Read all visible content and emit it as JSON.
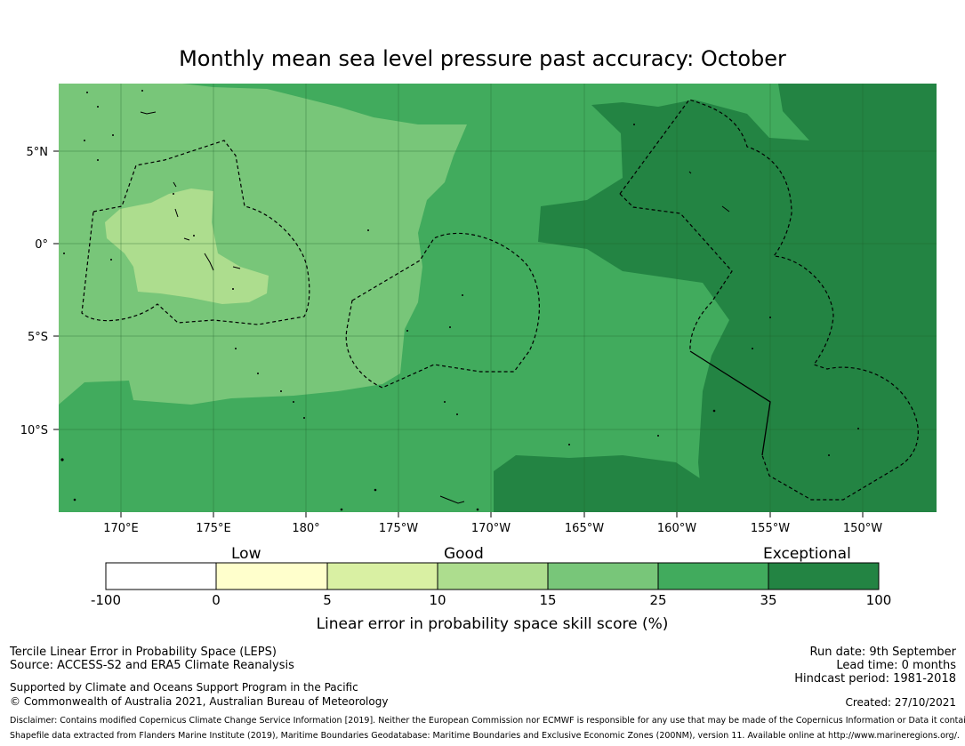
{
  "title": "Monthly mean sea level pressure past accuracy: October",
  "map": {
    "lat_ticks": [
      "5°N",
      "0°",
      "5°S",
      "10°S"
    ],
    "lon_ticks": [
      "170°E",
      "175°E",
      "180°",
      "175°W",
      "170°W",
      "165°W",
      "160°W",
      "155°W",
      "150°W"
    ]
  },
  "colorbar": {
    "category_labels": [
      "Low",
      "Good",
      "Exceptional"
    ],
    "ticks": [
      "-100",
      "0",
      "5",
      "10",
      "15",
      "25",
      "35",
      "100"
    ],
    "colors": [
      "#ffffff",
      "#ffffcc",
      "#d9f0a3",
      "#addd8e",
      "#78c679",
      "#41ab5d",
      "#238443"
    ],
    "label": "Linear error in probability space skill score (%)"
  },
  "footer": {
    "method": "Tercile Linear Error in Probability Space (LEPS)",
    "source": "Source: ACCESS-S2 and ERA5 Climate Reanalysis",
    "support": "Supported by Climate and Oceans Support Program in the Pacific",
    "copyright": "© Commonwealth of Australia 2021, Australian Bureau of Meteorology",
    "run_date": "Run date: 9th September",
    "lead_time": "Lead time: 0 months",
    "hindcast": "Hindcast period: 1981-2018",
    "created": "Created: 27/10/2021",
    "disclaimer": "Disclaimer: Contains modified Copernicus Climate Change Service Information [2019]. Neither the European Commission nor ECMWF is responsible for any use that may be made of the Copernicus Information or Data it contains.",
    "shapefile": "Shapefile data extracted from Flanders Marine Institute (2019), Maritime Boundaries Geodatabase: Maritime Boundaries and Exclusive Economic Zones (200NM), version 11. Available online at http://www.marineregions.org/."
  }
}
